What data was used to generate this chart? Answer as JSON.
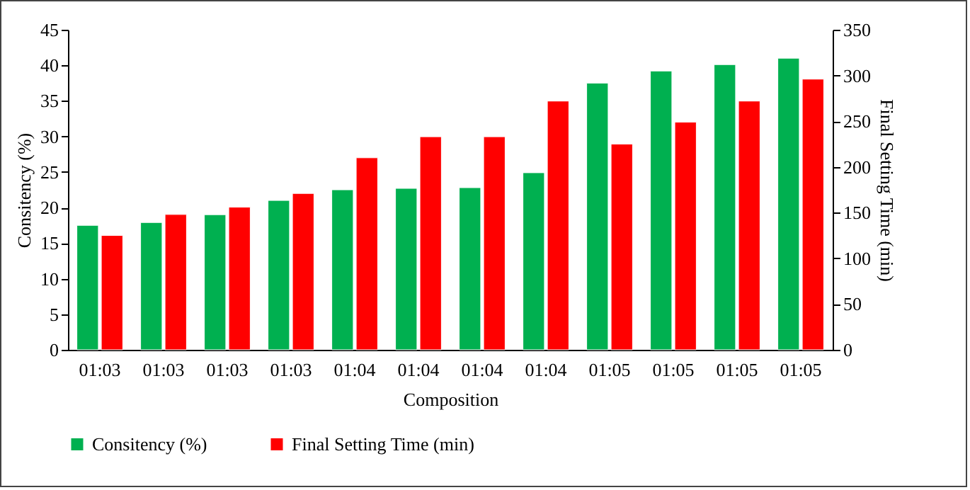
{
  "chart_data": {
    "type": "bar",
    "categories": [
      "01:03",
      "01:03",
      "01:03",
      "01:03",
      "01:04",
      "01:04",
      "01:04",
      "01:04",
      "01:05",
      "01:05",
      "01:05",
      "01:05"
    ],
    "xlabel": "Composition",
    "ylabel": "Consitency (%)",
    "y2label": "Final Setting Time (min)",
    "series": [
      {
        "name": "Consitency (%)",
        "color": "#00b050",
        "values": [
          17.5,
          17.9,
          19,
          21,
          22.5,
          22.7,
          22.8,
          24.9,
          37.5,
          39.2,
          40.1,
          41
        ]
      },
      {
        "name": "Final Setting Time (min)",
        "color": "#ff0000",
        "axis": "y2",
        "values": [
          125,
          148,
          156,
          171,
          210,
          233,
          233,
          272,
          225,
          249,
          272,
          296
        ]
      }
    ],
    "ylim": [
      0,
      45
    ],
    "yticks": [
      0,
      5,
      10,
      15,
      20,
      25,
      30,
      35,
      40,
      45
    ],
    "y2lim": [
      0,
      350
    ],
    "y2ticks": [
      0,
      50,
      100,
      150,
      200,
      250,
      300,
      350
    ],
    "grid": false,
    "legend": "bottom"
  }
}
